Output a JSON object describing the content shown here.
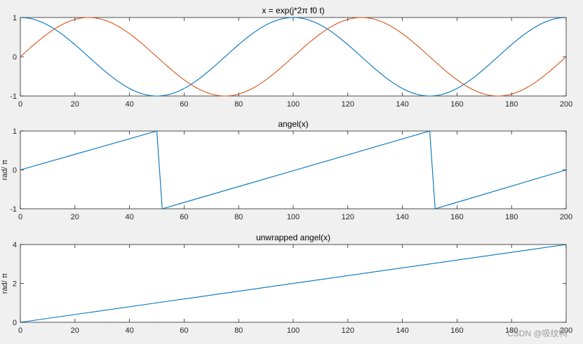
{
  "watermark": "CSDN @吸纹鸭",
  "chart_data": [
    {
      "type": "line",
      "title": "x = exp(j*2π f0 t)",
      "xlabel": "",
      "ylabel": "",
      "xlim": [
        0,
        200
      ],
      "ylim": [
        -1,
        1
      ],
      "xticks": [
        0,
        20,
        40,
        60,
        80,
        100,
        120,
        140,
        160,
        180,
        200
      ],
      "yticks": [
        -1,
        0,
        1
      ],
      "grid": false,
      "series": [
        {
          "color": "#0072BD",
          "x": [
            0,
            25,
            50,
            75,
            100,
            125,
            150,
            175,
            200
          ],
          "values": [
            1,
            0,
            -1,
            0,
            1,
            0,
            -1,
            0,
            1
          ]
        },
        {
          "color": "#D95319",
          "x": [
            0,
            25,
            50,
            75,
            100,
            125,
            150,
            175,
            200
          ],
          "values": [
            0,
            1,
            0,
            -1,
            0,
            1,
            0,
            -1,
            -0.06
          ]
        }
      ]
    },
    {
      "type": "line",
      "title": "angel(x)",
      "xlabel": "",
      "ylabel": "rad/ π",
      "xlim": [
        0,
        200
      ],
      "ylim": [
        -1,
        1
      ],
      "xticks": [
        0,
        20,
        40,
        60,
        80,
        100,
        120,
        140,
        160,
        180,
        200
      ],
      "yticks": [
        -1,
        0,
        1
      ],
      "grid": false,
      "series": [
        {
          "color": "#0072BD",
          "x": [
            0,
            50,
            52,
            150,
            152,
            200
          ],
          "values": [
            0,
            1,
            -1,
            1,
            -1,
            0
          ]
        }
      ]
    },
    {
      "type": "line",
      "title": "unwrapped angel(x)",
      "xlabel": "",
      "ylabel": "rad/ π",
      "xlim": [
        0,
        200
      ],
      "ylim": [
        0,
        4
      ],
      "xticks": [
        0,
        20,
        40,
        60,
        80,
        100,
        120,
        140,
        160,
        180,
        200
      ],
      "yticks": [
        0,
        2,
        4
      ],
      "grid": false,
      "series": [
        {
          "color": "#0072BD",
          "x": [
            0,
            200
          ],
          "values": [
            0,
            4
          ]
        }
      ]
    }
  ]
}
